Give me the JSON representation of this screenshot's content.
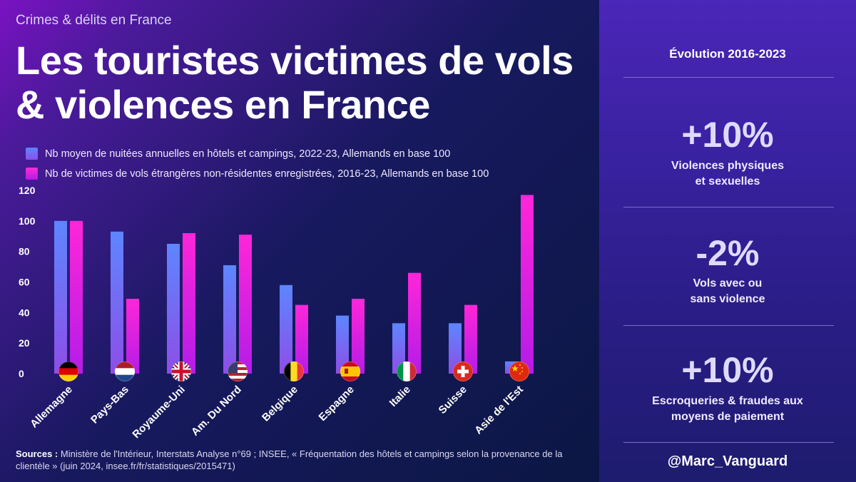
{
  "header": {
    "subtitle": "Crimes & délits en France",
    "title": "Les touristes victimes de vols & violences en France"
  },
  "chart_data": {
    "type": "bar",
    "categories": [
      "Allemagne",
      "Pays-Bas",
      "Royaume-Uni",
      "Am. Du Nord",
      "Belgique",
      "Espagne",
      "Italie",
      "Suisse",
      "Asie de l'Est"
    ],
    "series": [
      {
        "name": "Nb moyen de nuitées annuelles en hôtels et campings, 2022-23, Allemands en base 100",
        "values": [
          100,
          93,
          85,
          71,
          58,
          38,
          33,
          33,
          8
        ]
      },
      {
        "name": "Nb de victimes de vols étrangères non-résidentes enregistrées, 2016-23, Allemands en base 100",
        "values": [
          100,
          49,
          92,
          91,
          45,
          49,
          66,
          45,
          117
        ]
      }
    ],
    "yticks": [
      0,
      20,
      40,
      60,
      80,
      100,
      120
    ],
    "ylim": [
      0,
      120
    ],
    "grid": false,
    "legend": "top-left",
    "flags": [
      "de",
      "nl",
      "gb",
      "us",
      "be",
      "es",
      "it",
      "ch",
      "cn"
    ]
  },
  "colors": {
    "series1": "#6a7dff",
    "series2": "#f21ee0"
  },
  "sources": {
    "label": "Sources :",
    "text": "Ministère de l'Intérieur, Interstats Analyse n°69 ; INSEE, « Fréquentation des hôtels et campings selon la provenance de la clientèle » (juin 2024, insee.fr/fr/statistiques/2015471)"
  },
  "panel": {
    "heading": "Évolution 2016-2023",
    "stats": [
      {
        "value": "+10%",
        "label_lines": [
          "Violences physiques",
          "et sexuelles"
        ]
      },
      {
        "value": "-2%",
        "label_lines": [
          "Vols avec ou",
          "sans violence"
        ]
      },
      {
        "value": "+10%",
        "label_lines": [
          "Escroqueries & fraudes aux",
          "moyens de paiement"
        ]
      }
    ],
    "handle": "@Marc_Vanguard"
  }
}
